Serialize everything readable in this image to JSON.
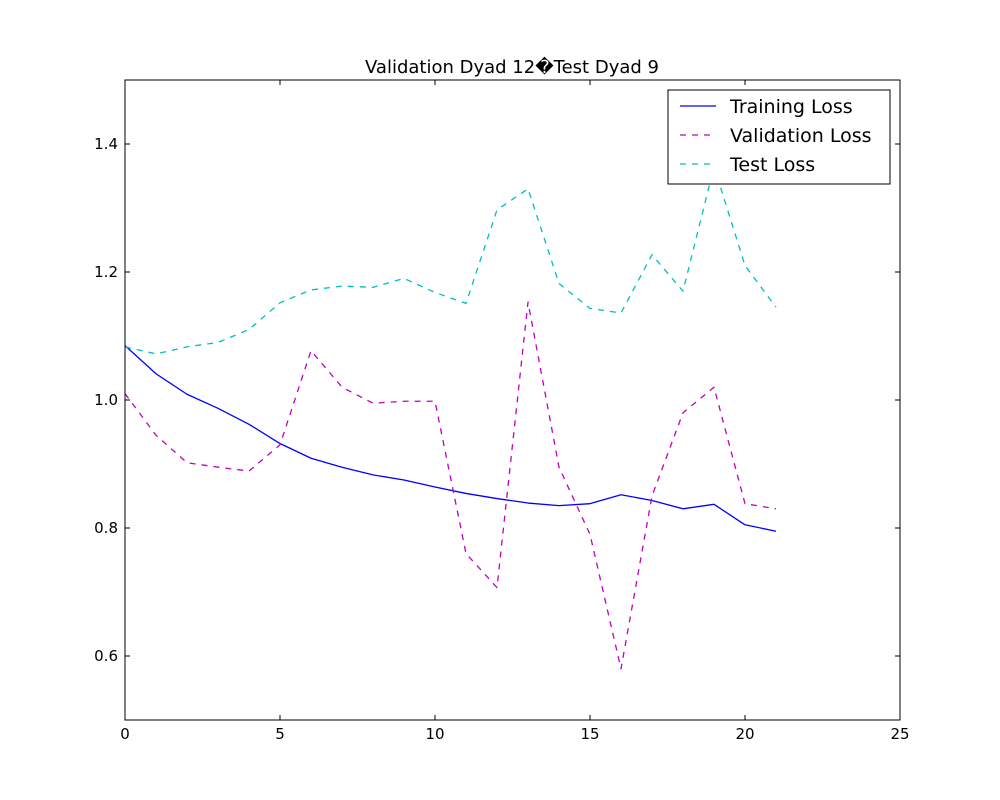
{
  "chart_data": {
    "type": "line",
    "title": "Validation Dyad 12�Test Dyad 9",
    "xlabel": "",
    "ylabel": "",
    "xlim": [
      0,
      25
    ],
    "ylim": [
      0.5,
      1.5
    ],
    "x_ticks": [
      0,
      5,
      10,
      15,
      20,
      25
    ],
    "y_ticks": [
      0.6,
      0.8,
      1.0,
      1.2,
      1.4
    ],
    "grid": false,
    "legend_position": "top-right",
    "x": [
      0,
      1,
      2,
      3,
      4,
      5,
      6,
      7,
      8,
      9,
      10,
      11,
      12,
      13,
      14,
      15,
      16,
      17,
      18,
      19,
      20,
      21
    ],
    "series": [
      {
        "name": "Training Loss",
        "color": "#0000ff",
        "style": "solid",
        "values": [
          1.085,
          1.041,
          1.009,
          0.987,
          0.962,
          0.932,
          0.909,
          0.895,
          0.883,
          0.875,
          0.864,
          0.854,
          0.846,
          0.839,
          0.835,
          0.838,
          0.852,
          0.843,
          0.83,
          0.837,
          0.805,
          0.795
        ]
      },
      {
        "name": "Validation Loss",
        "color": "#bf00bf",
        "style": "dashed",
        "values": [
          1.01,
          0.945,
          0.902,
          0.895,
          0.889,
          0.93,
          1.077,
          1.02,
          0.995,
          0.998,
          0.998,
          0.76,
          0.707,
          1.153,
          0.895,
          0.79,
          0.58,
          0.85,
          0.98,
          1.02,
          0.838,
          0.83
        ]
      },
      {
        "name": "Test Loss",
        "color": "#00bfbf",
        "style": "dashed",
        "values": [
          1.083,
          1.072,
          1.083,
          1.09,
          1.11,
          1.152,
          1.172,
          1.178,
          1.176,
          1.19,
          1.168,
          1.151,
          1.297,
          1.33,
          1.182,
          1.143,
          1.136,
          1.227,
          1.17,
          1.365,
          1.21,
          1.145
        ]
      }
    ]
  }
}
